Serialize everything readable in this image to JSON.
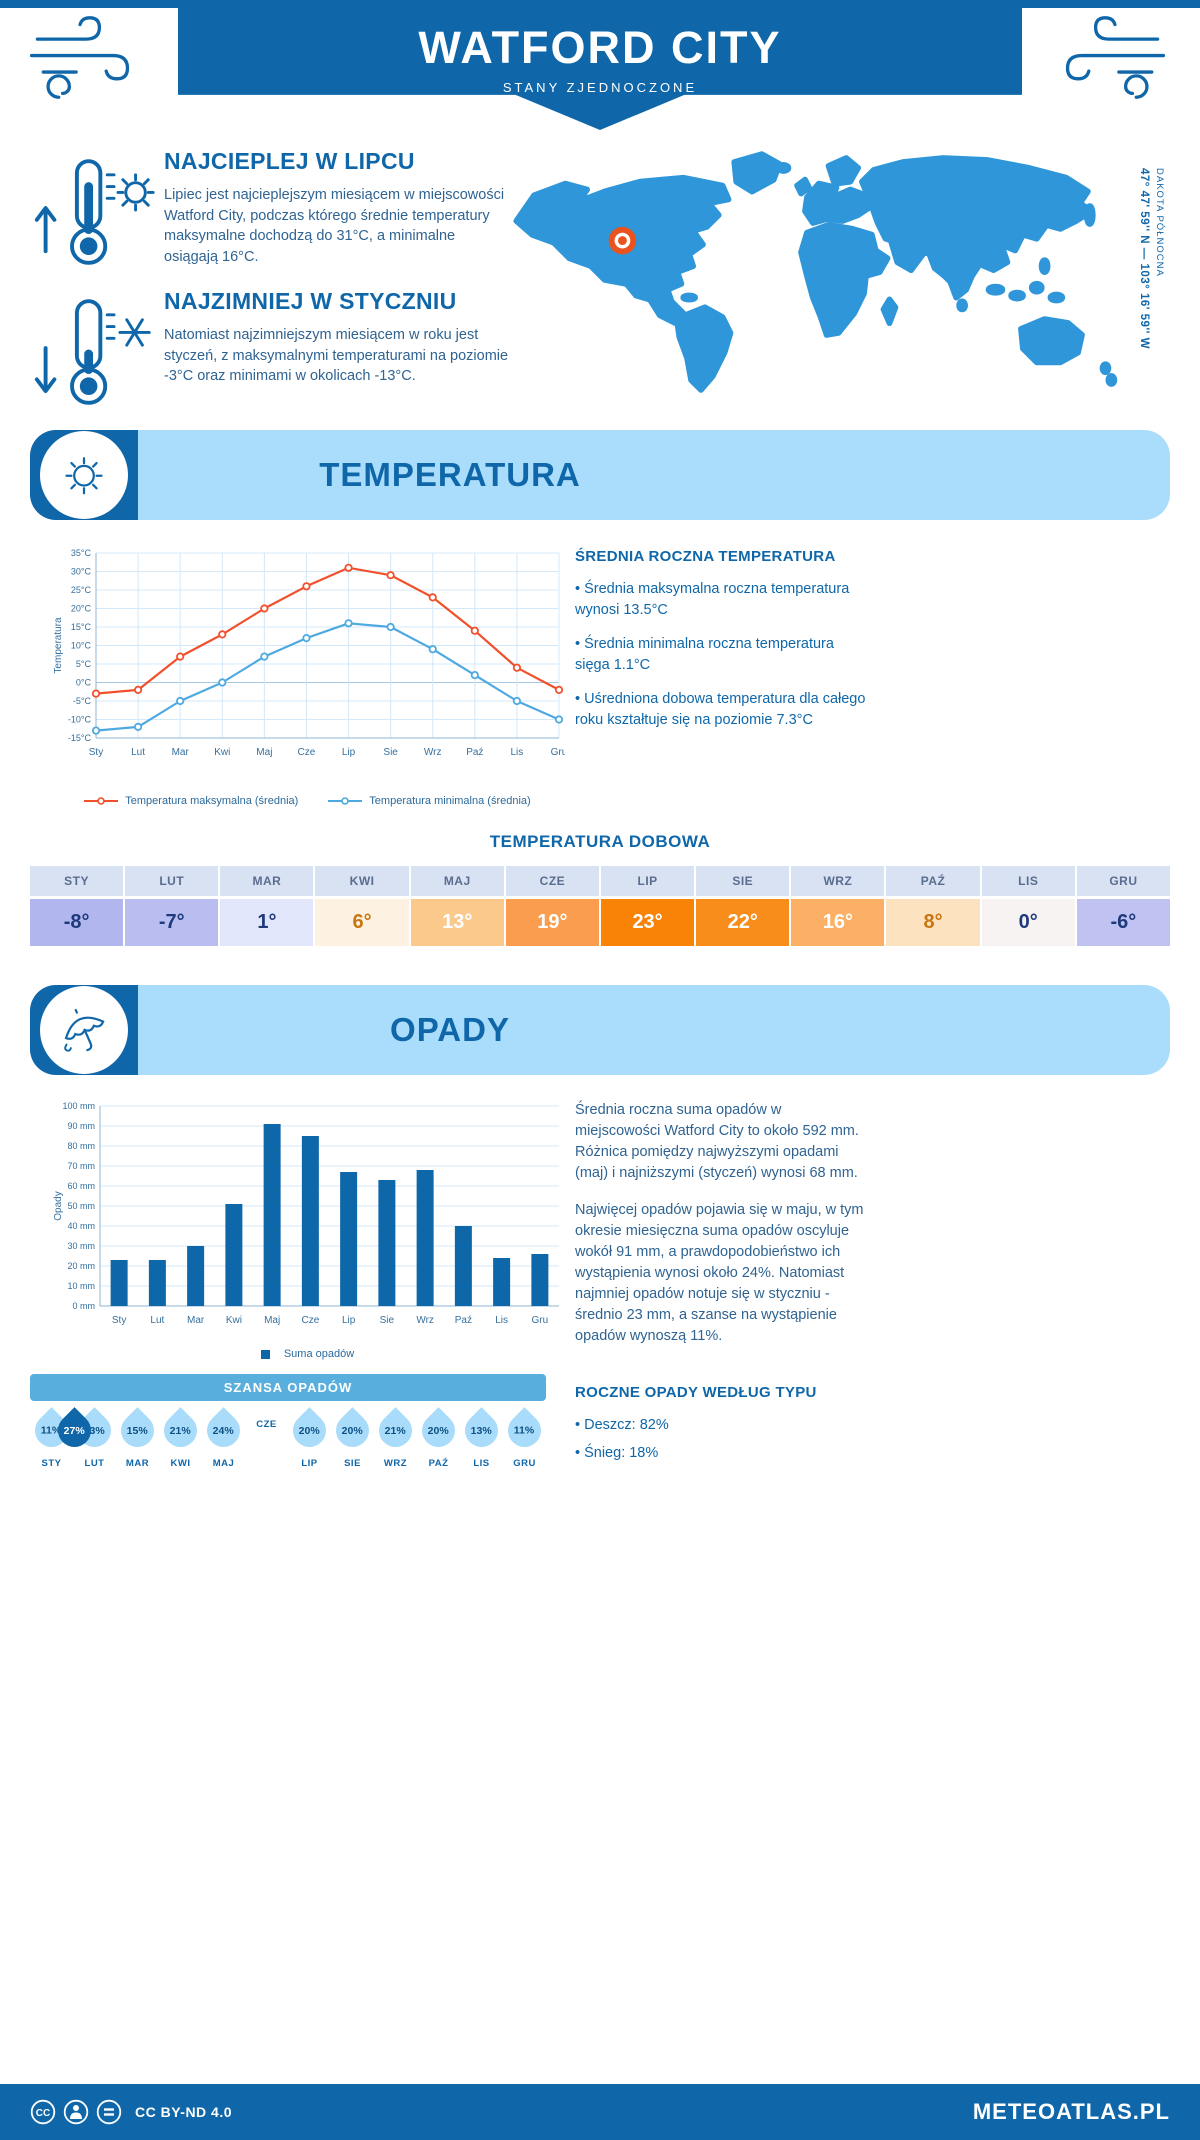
{
  "header": {
    "title": "WATFORD CITY",
    "subtitle": "STANY ZJEDNOCZONE"
  },
  "highlights": [
    {
      "title": "NAJCIEPLEJ W LIPCU",
      "text": "Lipiec jest najcieplejszym miesiącem w miejscowości Watford City, podczas którego średnie temperatury maksymalne dochodzą do 31°C, a minimalne osiągają 16°C."
    },
    {
      "title": "NAJZIMNIEJ W STYCZNIU",
      "text": "Natomiast najzimniejszym miesiącem w roku jest styczeń, z maksymalnymi temperaturami na poziomie -3°C oraz minimami w okolicach -13°C."
    }
  ],
  "map": {
    "coordinates": "47° 47' 59'' N — 103° 16' 59'' W",
    "region": "DAKOTA PÓŁNOCNA"
  },
  "temperature": {
    "band_title": "TEMPERATURA",
    "sidebar_title": "ŚREDNIA ROCZNA TEMPERATURA",
    "bullets": [
      "• Średnia maksymalna roczna temperatura wynosi 13.5°C",
      "• Średnia minimalna roczna temperatura sięga 1.1°C",
      "• Uśredniona dobowa temperatura dla całego roku kształtuje się na poziomie 7.3°C"
    ],
    "daily_title": "TEMPERATURA DOBOWA",
    "daily": {
      "months": [
        "STY",
        "LUT",
        "MAR",
        "KWI",
        "MAJ",
        "CZE",
        "LIP",
        "SIE",
        "WRZ",
        "PAŹ",
        "LIS",
        "GRU"
      ],
      "values": [
        "-8°",
        "-7°",
        "1°",
        "6°",
        "13°",
        "19°",
        "23°",
        "22°",
        "16°",
        "8°",
        "0°",
        "-6°"
      ],
      "bg": [
        "#b2b6ee",
        "#babdf0",
        "#e2e6fa",
        "#fdf2e2",
        "#fcc98c",
        "#fa9d4f",
        "#f88307",
        "#f88d1c",
        "#fbb066",
        "#fde2c0",
        "#f7f3f2",
        "#c0c3f2"
      ],
      "fg": [
        "#1e3a7c",
        "#1e3a7c",
        "#1e3a7c",
        "#c87612",
        "#ffffff",
        "#ffffff",
        "#ffffff",
        "#ffffff",
        "#ffffff",
        "#c87612",
        "#1e3a7c",
        "#1e3a7c"
      ]
    }
  },
  "precipitation": {
    "band_title": "OPADY",
    "paragraphs": [
      "Średnia roczna suma opadów w miejscowości Watford City to około 592 mm. Różnica pomiędzy najwyższymi opadami (maj) i najniższymi (styczeń) wynosi 68 mm.",
      "Najwięcej opadów pojawia się w maju, w tym okresie miesięczna suma opadów oscyluje wokół 91 mm, a prawdopodobieństwo ich wystąpienia wynosi około 24%. Natomiast najmniej opadów notuje się w styczniu - średnio 23 mm, a szanse na wystąpienie opadów wynoszą 11%."
    ],
    "chance_title": "SZANSA OPADÓW",
    "chance": {
      "months": [
        "STY",
        "LUT",
        "MAR",
        "KWI",
        "MAJ",
        "CZE",
        "LIP",
        "SIE",
        "WRZ",
        "PAŹ",
        "LIS",
        "GRU"
      ],
      "values": [
        "11%",
        "13%",
        "15%",
        "21%",
        "24%",
        "27%",
        "20%",
        "20%",
        "21%",
        "20%",
        "13%",
        "11%"
      ],
      "highlight_index": 5
    },
    "type_title": "ROCZNE OPADY WEDŁUG TYPU",
    "type_bullets": [
      "• Deszcz: 82%",
      "• Śnieg: 18%"
    ]
  },
  "footer": {
    "license": "CC BY-ND 4.0",
    "brand": "METEOATLAS.PL"
  },
  "chart_data": [
    {
      "type": "line",
      "title": "TEMPERATURA",
      "categories": [
        "Sty",
        "Lut",
        "Mar",
        "Kwi",
        "Maj",
        "Cze",
        "Lip",
        "Sie",
        "Wrz",
        "Paź",
        "Lis",
        "Gru"
      ],
      "series": [
        {
          "name": "Temperatura maksymalna (średnia)",
          "color": "#f2502c",
          "values": [
            -3,
            -2,
            7,
            13,
            20,
            26,
            31,
            29,
            23,
            14,
            4,
            -2
          ]
        },
        {
          "name": "Temperatura minimalna (średnia)",
          "color": "#4ea9e0",
          "values": [
            -13,
            -12,
            -5,
            0,
            7,
            12,
            16,
            15,
            9,
            2,
            -5,
            -10
          ]
        }
      ],
      "xlabel": "",
      "ylabel": "Temperatura",
      "ylim": [
        -15,
        35
      ],
      "ytick_step": 5,
      "ytick_suffix": "°C",
      "grid": true,
      "legend_position": "bottom"
    },
    {
      "type": "bar",
      "title": "OPADY",
      "categories": [
        "Sty",
        "Lut",
        "Mar",
        "Kwi",
        "Maj",
        "Cze",
        "Lip",
        "Sie",
        "Wrz",
        "Paź",
        "Lis",
        "Gru"
      ],
      "series": [
        {
          "name": "Suma opadów",
          "color": "#0e67a8",
          "values": [
            23,
            23,
            30,
            51,
            91,
            85,
            67,
            63,
            68,
            40,
            24,
            26
          ]
        }
      ],
      "xlabel": "",
      "ylabel": "Opady",
      "ylim": [
        0,
        100
      ],
      "ytick_step": 10,
      "ytick_suffix": " mm",
      "grid": true,
      "legend_position": "bottom"
    }
  ]
}
